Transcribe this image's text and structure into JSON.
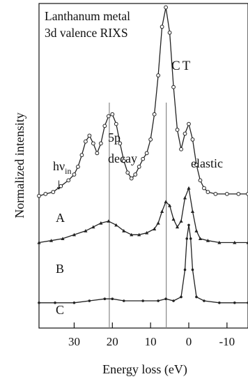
{
  "chart_data": {
    "type": "line",
    "title_lines": [
      "Lanthanum metal",
      "3d valence RIXS"
    ],
    "xlabel": "Energy loss (eV)",
    "ylabel": "Normalized intensity",
    "xlim": [
      39.2,
      -15.5
    ],
    "x_ticks": [
      30,
      20,
      10,
      0,
      -10
    ],
    "x_tick_labels": [
      "30",
      "20",
      "10",
      "0",
      "-10"
    ],
    "grid": false,
    "legend": "none",
    "vertical_guides": [
      20.8,
      5.9
    ],
    "annotations": {
      "ct": "CT",
      "decay_5p_line1": "5p",
      "decay_5p_line2": "decay",
      "elastic": "elastic",
      "hv_main": "hν",
      "hv_sub": "in",
      "arrow": "↓"
    },
    "series": [
      {
        "name": "A",
        "marker": "open-circle",
        "points": [
          [
            39.2,
            0.26
          ],
          [
            37.5,
            0.27
          ],
          [
            35.5,
            0.28
          ],
          [
            33.5,
            0.31
          ],
          [
            31.5,
            0.34
          ],
          [
            30.0,
            0.37
          ],
          [
            29.0,
            0.41
          ],
          [
            28.0,
            0.47
          ],
          [
            27.0,
            0.54
          ],
          [
            26.0,
            0.57
          ],
          [
            25.0,
            0.53
          ],
          [
            24.0,
            0.48
          ],
          [
            23.0,
            0.53
          ],
          [
            22.0,
            0.62
          ],
          [
            21.0,
            0.67
          ],
          [
            20.0,
            0.68
          ],
          [
            19.0,
            0.63
          ],
          [
            18.0,
            0.53
          ],
          [
            17.0,
            0.44
          ],
          [
            16.0,
            0.38
          ],
          [
            15.0,
            0.35
          ],
          [
            14.0,
            0.37
          ],
          [
            13.0,
            0.41
          ],
          [
            12.0,
            0.45
          ],
          [
            11.0,
            0.48
          ],
          [
            10.0,
            0.55
          ],
          [
            9.0,
            0.68
          ],
          [
            8.0,
            0.88
          ],
          [
            7.0,
            1.13
          ],
          [
            6.0,
            1.23
          ],
          [
            5.0,
            1.1
          ],
          [
            4.0,
            0.82
          ],
          [
            3.0,
            0.6
          ],
          [
            2.0,
            0.5
          ],
          [
            1.0,
            0.58
          ],
          [
            0.0,
            0.63
          ],
          [
            -1.0,
            0.55
          ],
          [
            -2.0,
            0.42
          ],
          [
            -3.0,
            0.34
          ],
          [
            -4.0,
            0.3
          ],
          [
            -5.0,
            0.28
          ],
          [
            -7.0,
            0.27
          ],
          [
            -10.0,
            0.27
          ],
          [
            -13.0,
            0.27
          ],
          [
            -15.5,
            0.27
          ]
        ]
      },
      {
        "name": "B",
        "marker": "filled-triangle",
        "points": [
          [
            39.2,
            0.02
          ],
          [
            36.0,
            0.03
          ],
          [
            33.0,
            0.04
          ],
          [
            30.0,
            0.06
          ],
          [
            27.0,
            0.08
          ],
          [
            25.0,
            0.1
          ],
          [
            23.0,
            0.12
          ],
          [
            21.0,
            0.13
          ],
          [
            19.0,
            0.11
          ],
          [
            17.0,
            0.08
          ],
          [
            15.0,
            0.06
          ],
          [
            13.0,
            0.06
          ],
          [
            11.0,
            0.07
          ],
          [
            9.0,
            0.09
          ],
          [
            8.0,
            0.12
          ],
          [
            7.0,
            0.18
          ],
          [
            6.0,
            0.23
          ],
          [
            5.0,
            0.21
          ],
          [
            4.0,
            0.14
          ],
          [
            3.0,
            0.1
          ],
          [
            2.0,
            0.13
          ],
          [
            1.0,
            0.25
          ],
          [
            0.0,
            0.3
          ],
          [
            -1.0,
            0.18
          ],
          [
            -2.0,
            0.08
          ],
          [
            -3.0,
            0.04
          ],
          [
            -5.0,
            0.03
          ],
          [
            -8.0,
            0.02
          ],
          [
            -12.0,
            0.02
          ],
          [
            -15.5,
            0.02
          ]
        ]
      },
      {
        "name": "C",
        "marker": "filled-dot",
        "points": [
          [
            39.2,
            -0.29
          ],
          [
            35.0,
            -0.29
          ],
          [
            30.0,
            -0.29
          ],
          [
            26.0,
            -0.28
          ],
          [
            22.0,
            -0.27
          ],
          [
            20.0,
            -0.27
          ],
          [
            17.0,
            -0.28
          ],
          [
            12.0,
            -0.28
          ],
          [
            8.0,
            -0.28
          ],
          [
            6.0,
            -0.27
          ],
          [
            4.0,
            -0.28
          ],
          [
            2.0,
            -0.26
          ],
          [
            1.0,
            -0.12
          ],
          [
            0.5,
            0.04
          ],
          [
            0.0,
            0.11
          ],
          [
            -0.5,
            0.04
          ],
          [
            -1.0,
            -0.12
          ],
          [
            -2.0,
            -0.26
          ],
          [
            -4.0,
            -0.28
          ],
          [
            -8.0,
            -0.29
          ],
          [
            -12.0,
            -0.29
          ],
          [
            -15.5,
            -0.29
          ]
        ]
      }
    ]
  }
}
